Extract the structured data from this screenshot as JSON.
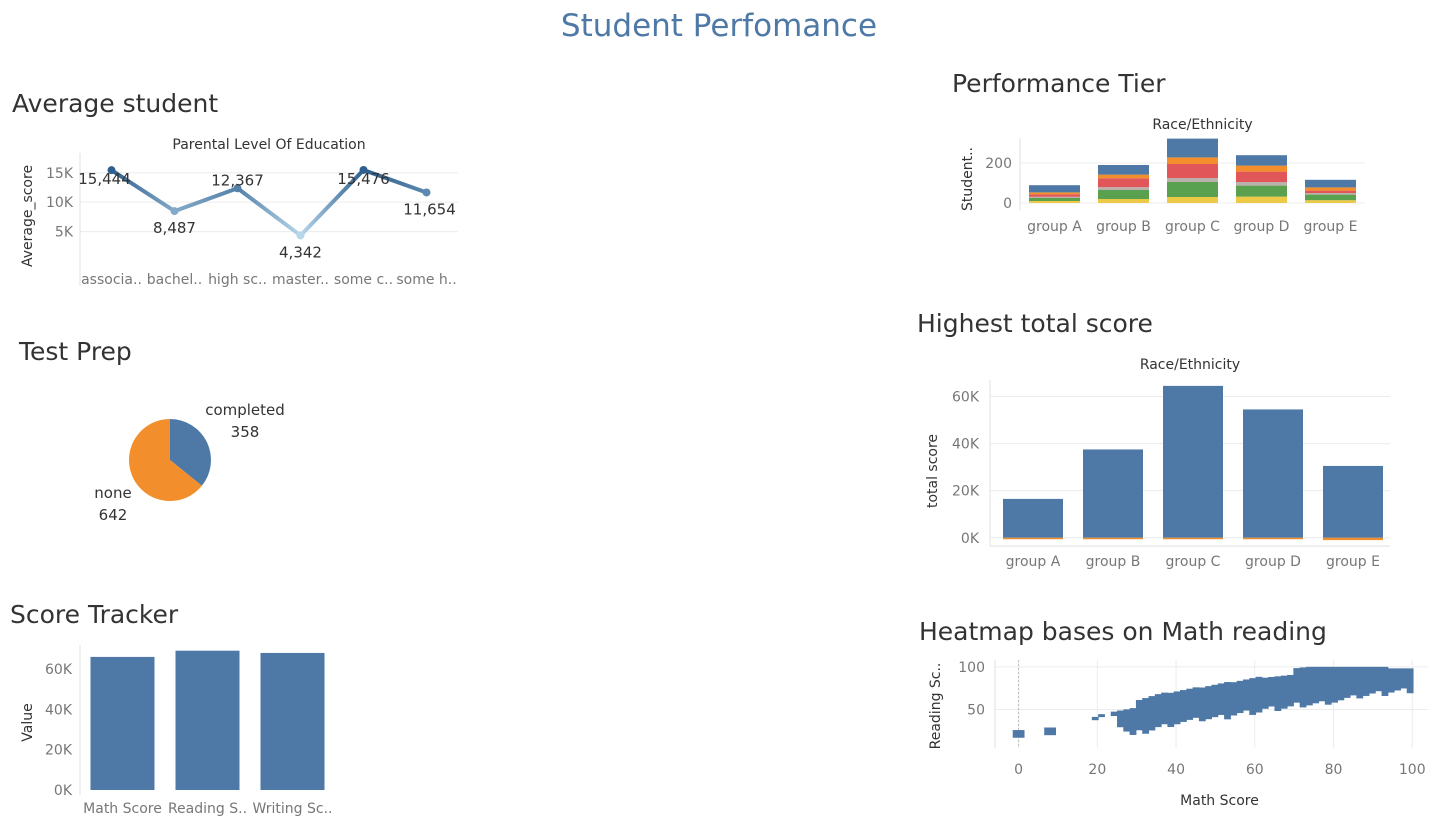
{
  "dashboard_title": "Student Perfomance",
  "colors": {
    "accent": "#4e79a7",
    "orange": "#f28e2b"
  },
  "chart_data": [
    {
      "id": "avg",
      "type": "line",
      "title": "Average student",
      "header": "Parental Level Of Education",
      "ylabel": "Average_score",
      "xlabel": "",
      "categories": [
        "associa..",
        "bachel..",
        "high sc..",
        "master..",
        "some c..",
        "some h.."
      ],
      "values": [
        15444,
        8487,
        12367,
        4342,
        15476,
        11654
      ],
      "value_labels": [
        "15,444",
        "8,487",
        "12,367",
        "4,342",
        "15,476",
        "11,654"
      ],
      "y_ticks": [
        {
          "v": 5000,
          "label": "5K"
        },
        {
          "v": 10000,
          "label": "10K"
        },
        {
          "v": 15000,
          "label": "15K"
        }
      ],
      "ylim": [
        0,
        17000
      ],
      "grid": true
    },
    {
      "id": "prep",
      "type": "pie",
      "title": "Test Prep",
      "slices": [
        {
          "label": "completed",
          "value": 358,
          "value_label": "358",
          "color": "#4e79a7"
        },
        {
          "label": "none",
          "value": 642,
          "value_label": "642",
          "color": "#f28e2b"
        }
      ]
    },
    {
      "id": "tracker",
      "type": "bar",
      "title": "Score Tracker",
      "ylabel": "Value",
      "xlabel": "",
      "categories": [
        "Math Score",
        "Reading S..",
        "Writing Sc.."
      ],
      "values": [
        66089,
        69169,
        68054
      ],
      "y_ticks": [
        {
          "v": 0,
          "label": "0K"
        },
        {
          "v": 20000,
          "label": "20K"
        },
        {
          "v": 40000,
          "label": "40K"
        },
        {
          "v": 60000,
          "label": "60K"
        }
      ],
      "ylim": [
        0,
        72000
      ],
      "color": "#4e79a7"
    },
    {
      "id": "tier",
      "type": "bar",
      "stacked": true,
      "title": "Performance Tier",
      "header": "Race/Ethnicity",
      "ylabel": "Student..",
      "xlabel": "",
      "categories": [
        "group A",
        "group B",
        "group C",
        "group D",
        "group E"
      ],
      "series": [
        {
          "color": "#edc948",
          "values": [
            10,
            20,
            30,
            32,
            14
          ]
        },
        {
          "color": "#59a14f",
          "values": [
            15,
            45,
            75,
            55,
            28
          ]
        },
        {
          "color": "#bab0ac",
          "values": [
            6,
            14,
            20,
            18,
            8
          ]
        },
        {
          "color": "#e15759",
          "values": [
            12,
            45,
            70,
            52,
            12
          ]
        },
        {
          "color": "#f28e2b",
          "values": [
            10,
            18,
            33,
            30,
            16
          ]
        },
        {
          "color": "#4e79a7",
          "values": [
            36,
            48,
            94,
            52,
            38
          ]
        }
      ],
      "y_ticks": [
        {
          "v": 0,
          "label": "0"
        },
        {
          "v": 200,
          "label": "200"
        }
      ],
      "ylim": [
        -35,
        325
      ],
      "grid": true
    },
    {
      "id": "highest",
      "type": "bar",
      "title": "Highest total score",
      "header": "Race/Ethnicity",
      "ylabel": "total score",
      "xlabel": "",
      "categories": [
        "group A",
        "group B",
        "group C",
        "group D",
        "group E"
      ],
      "values": [
        16500,
        37500,
        64500,
        54500,
        30500
      ],
      "accent_values": [
        400,
        600,
        600,
        600,
        1000
      ],
      "y_ticks": [
        {
          "v": 0,
          "label": "0K"
        },
        {
          "v": 20000,
          "label": "20K"
        },
        {
          "v": 40000,
          "label": "40K"
        },
        {
          "v": 60000,
          "label": "60K"
        }
      ],
      "ylim": [
        -3500,
        67000
      ],
      "color": "#4e79a7",
      "accent_color": "#f28e2b",
      "grid": true
    },
    {
      "id": "heat",
      "type": "heatmap",
      "title": "Heatmap bases on Math reading",
      "xlabel": "Math Score",
      "ylabel": "Reading Sc..",
      "x_ticks": [
        0,
        20,
        40,
        60,
        80,
        100
      ],
      "y_ticks": [
        50,
        100
      ],
      "xlim": [
        -6,
        104
      ],
      "ylim": [
        5,
        108
      ],
      "color": "#4e79a7",
      "band_lower": [
        [
          0,
          17
        ],
        [
          8,
          20
        ],
        [
          18,
          40
        ],
        [
          22,
          45
        ],
        [
          28,
          20
        ],
        [
          35,
          30
        ],
        [
          40,
          35
        ],
        [
          50,
          40
        ],
        [
          60,
          48
        ],
        [
          70,
          55
        ],
        [
          80,
          60
        ],
        [
          90,
          68
        ],
        [
          100,
          73
        ]
      ],
      "band_upper": [
        [
          0,
          26
        ],
        [
          8,
          28
        ],
        [
          18,
          42
        ],
        [
          22,
          50
        ],
        [
          28,
          55
        ],
        [
          35,
          65
        ],
        [
          40,
          70
        ],
        [
          50,
          80
        ],
        [
          60,
          90
        ],
        [
          70,
          95
        ],
        [
          80,
          100
        ],
        [
          90,
          100
        ],
        [
          100,
          100
        ]
      ]
    }
  ]
}
